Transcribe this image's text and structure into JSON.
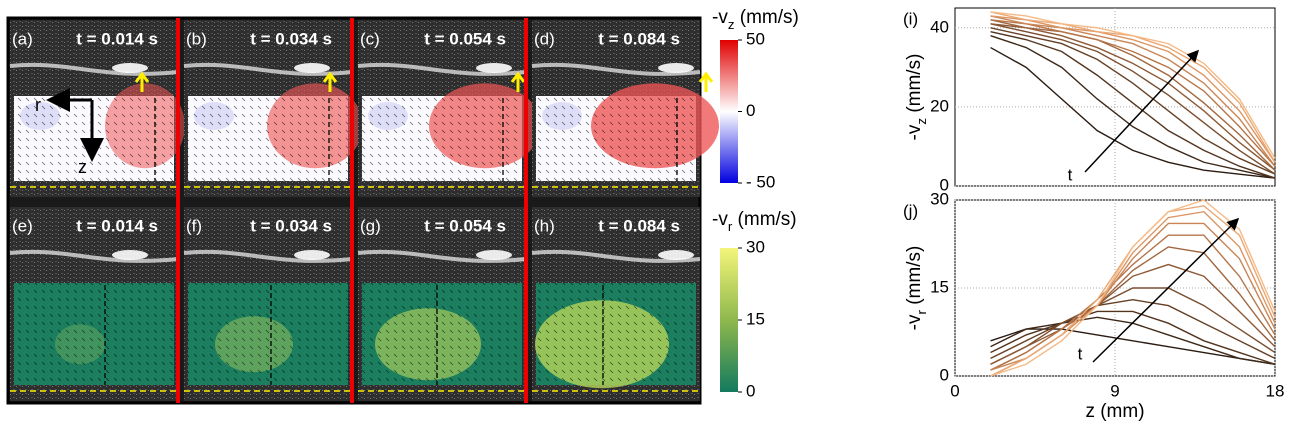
{
  "figure": {
    "vz_row": [
      {
        "label": "(a)",
        "time": "t = 0.014 s"
      },
      {
        "label": "(b)",
        "time": "t = 0.034 s"
      },
      {
        "label": "(c)",
        "time": "t = 0.054 s"
      },
      {
        "label": "(d)",
        "time": "t = 0.084 s"
      }
    ],
    "vr_row": [
      {
        "label": "(e)",
        "time": "t = 0.014 s"
      },
      {
        "label": "(f)",
        "time": "t = 0.034 s"
      },
      {
        "label": "(g)",
        "time": "t = 0.054 s"
      },
      {
        "label": "(h)",
        "time": "t = 0.084 s"
      }
    ],
    "axes_labels": {
      "r": "r",
      "z": "z"
    },
    "colorbars": [
      {
        "label": {
          "pre": "-v",
          "sub": "z",
          "post": " (mm/s)"
        },
        "lim": [
          -50,
          50
        ],
        "ticks": [
          50,
          0,
          {
            "value": -50,
            "label": "- 50"
          }
        ]
      },
      {
        "label": {
          "pre": "-v",
          "sub": "r",
          "post": " (mm/s)"
        },
        "lim": [
          0,
          30
        ],
        "ticks": [
          30,
          15,
          0
        ]
      }
    ]
  },
  "chart_data": [
    {
      "type": "line",
      "panel_label": "(i)",
      "annotation": "t",
      "y_label": {
        "pre": "-v",
        "sub": "z",
        "post": " (mm/s)"
      },
      "x": [
        2,
        4,
        6,
        8,
        10,
        12,
        14,
        16,
        18
      ],
      "xlim": [
        0,
        18
      ],
      "xticks": [
        9
      ],
      "ylim": [
        0,
        45
      ],
      "yticks": [
        0,
        20,
        40
      ],
      "grid": true,
      "series": [
        {
          "color": "#2a1c12",
          "values": [
            35,
            30,
            22,
            14,
            9,
            6,
            4,
            3,
            2
          ]
        },
        {
          "color": "#3e2818",
          "values": [
            38,
            35,
            30,
            22,
            15,
            10,
            6,
            4,
            2
          ]
        },
        {
          "color": "#52341f",
          "values": [
            39,
            37,
            34,
            28,
            21,
            14,
            9,
            5,
            2
          ]
        },
        {
          "color": "#664026",
          "values": [
            40,
            38,
            36,
            32,
            26,
            19,
            12,
            7,
            3
          ]
        },
        {
          "color": "#7a4d2e",
          "values": [
            41,
            39,
            37,
            34,
            29,
            23,
            16,
            9,
            3
          ]
        },
        {
          "color": "#8e5a36",
          "values": [
            41,
            40,
            38,
            35,
            31,
            26,
            19,
            11,
            4
          ]
        },
        {
          "color": "#a2673f",
          "values": [
            42,
            40,
            39,
            37,
            33,
            28,
            21,
            13,
            4
          ]
        },
        {
          "color": "#b67549",
          "values": [
            42,
            41,
            39,
            37,
            34,
            30,
            24,
            15,
            5
          ]
        },
        {
          "color": "#c98556",
          "values": [
            43,
            41,
            40,
            38,
            36,
            32,
            26,
            17,
            5
          ]
        },
        {
          "color": "#db9664",
          "values": [
            43,
            42,
            40,
            39,
            37,
            34,
            28,
            19,
            6
          ]
        },
        {
          "color": "#eaa874",
          "values": [
            44,
            42,
            41,
            39,
            38,
            35,
            30,
            21,
            6
          ]
        },
        {
          "color": "#f6ba86",
          "values": [
            44,
            43,
            41,
            40,
            38,
            36,
            31,
            22,
            7
          ]
        }
      ]
    },
    {
      "type": "line",
      "panel_label": "(j)",
      "annotation": "t",
      "y_label": {
        "pre": "-v",
        "sub": "r",
        "post": " (mm/s)"
      },
      "x_label": "z (mm)",
      "x": [
        2,
        4,
        6,
        8,
        10,
        12,
        14,
        16,
        18
      ],
      "xlim": [
        0,
        18
      ],
      "xticks": [
        0,
        9,
        18
      ],
      "ylim": [
        0,
        30
      ],
      "yticks": [
        0,
        15,
        30
      ],
      "grid": true,
      "series": [
        {
          "color": "#2a1c12",
          "values": [
            6,
            8,
            8,
            7,
            6,
            5,
            4,
            3,
            2
          ]
        },
        {
          "color": "#3e2818",
          "values": [
            5,
            8,
            9,
            10,
            9,
            7,
            5,
            3,
            2
          ]
        },
        {
          "color": "#52341f",
          "values": [
            4,
            7,
            9,
            11,
            11,
            9,
            6,
            4,
            2
          ]
        },
        {
          "color": "#664026",
          "values": [
            3,
            6,
            9,
            12,
            13,
            12,
            9,
            6,
            3
          ]
        },
        {
          "color": "#7a4d2e",
          "values": [
            2,
            5,
            9,
            12,
            15,
            15,
            12,
            8,
            4
          ]
        },
        {
          "color": "#8e5a36",
          "values": [
            2,
            5,
            8,
            12,
            17,
            19,
            17,
            11,
            5
          ]
        },
        {
          "color": "#a2673f",
          "values": [
            1,
            4,
            8,
            12,
            18,
            22,
            21,
            14,
            6
          ]
        },
        {
          "color": "#b67549",
          "values": [
            1,
            4,
            8,
            13,
            19,
            24,
            24,
            17,
            7
          ]
        },
        {
          "color": "#c98556",
          "values": [
            1,
            3,
            7,
            12,
            20,
            26,
            26,
            20,
            8
          ]
        },
        {
          "color": "#db9664",
          "values": [
            0,
            3,
            7,
            12,
            21,
            27,
            28,
            22,
            9
          ]
        },
        {
          "color": "#eaa874",
          "values": [
            0,
            3,
            7,
            13,
            22,
            28,
            29,
            24,
            10
          ]
        },
        {
          "color": "#f6ba86",
          "values": [
            0,
            2,
            6,
            12,
            22,
            28,
            30,
            25,
            11
          ]
        }
      ]
    }
  ]
}
